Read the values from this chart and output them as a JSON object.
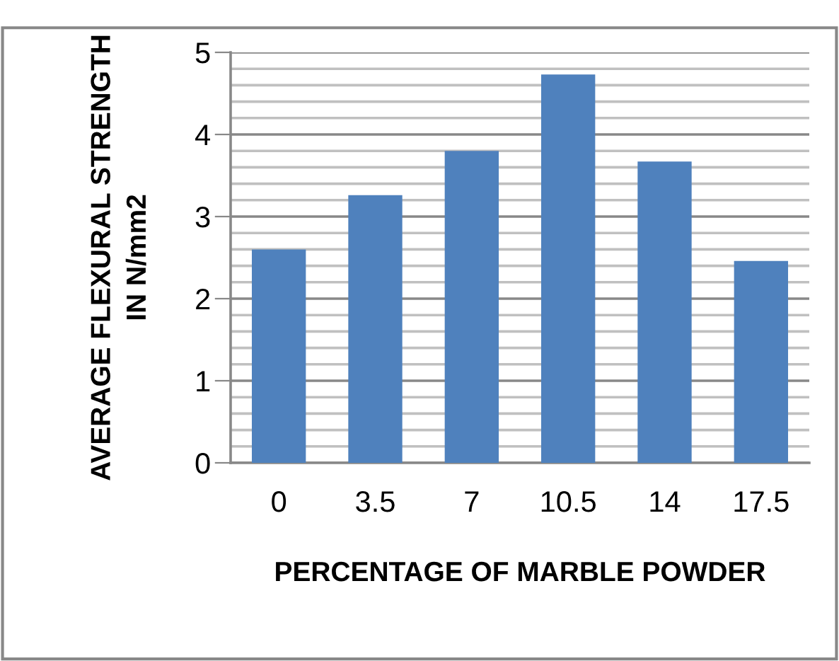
{
  "chart_data": {
    "type": "bar",
    "xlabel": "PERCENTAGE OF MARBLE POWDER",
    "ylabel": "AVERAGE FLEXURAL STRENGTH\nIN N/mm2",
    "categories": [
      "0",
      "3.5",
      "7",
      "10.5",
      "14",
      "17.5"
    ],
    "values": [
      2.6,
      3.26,
      3.8,
      4.73,
      3.67,
      2.46
    ],
    "color": "#4f81bd",
    "ylim": [
      0,
      5
    ],
    "yticks": [
      0,
      {
        "value": 0.2,
        "label": null
      },
      {
        "value": 0.4,
        "label": null
      },
      {
        "value": 0.6,
        "label": null
      },
      {
        "value": 0.8,
        "label": null
      },
      1,
      {
        "value": 1.2,
        "label": null
      },
      {
        "value": 1.4,
        "label": null
      },
      {
        "value": 1.6,
        "label": null
      },
      {
        "value": 1.8,
        "label": null
      },
      2,
      {
        "value": 2.2,
        "label": null
      },
      {
        "value": 2.4,
        "label": null
      },
      {
        "value": 2.6,
        "label": null
      },
      {
        "value": 2.8,
        "label": null
      },
      3,
      {
        "value": 3.2,
        "label": null
      },
      {
        "value": 3.4,
        "label": null
      },
      {
        "value": 3.6,
        "label": null
      },
      {
        "value": 3.8,
        "label": null
      },
      4,
      {
        "value": 4.2,
        "label": null
      },
      {
        "value": 4.4,
        "label": null
      },
      {
        "value": 4.6,
        "label": null
      },
      {
        "value": 4.8,
        "label": null
      },
      5
    ],
    "grid": "y",
    "legend": false
  }
}
